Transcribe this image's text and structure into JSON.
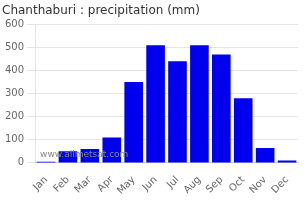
{
  "chart_data": {
    "type": "bar",
    "title": "Chanthaburi : precipitation (mm)",
    "categories": [
      "Jan",
      "Feb",
      "Mar",
      "Apr",
      "May",
      "Jun",
      "Jul",
      "Aug",
      "Sep",
      "Oct",
      "Nov",
      "Dec"
    ],
    "values": [
      5,
      50,
      60,
      110,
      350,
      510,
      440,
      510,
      470,
      280,
      65,
      10
    ],
    "color": "#0000ee",
    "ylim": [
      0,
      600
    ],
    "yticks": [
      0,
      100,
      200,
      300,
      400,
      500,
      600
    ],
    "grid": true,
    "annotations": [
      "www.allmetsat.com"
    ]
  }
}
